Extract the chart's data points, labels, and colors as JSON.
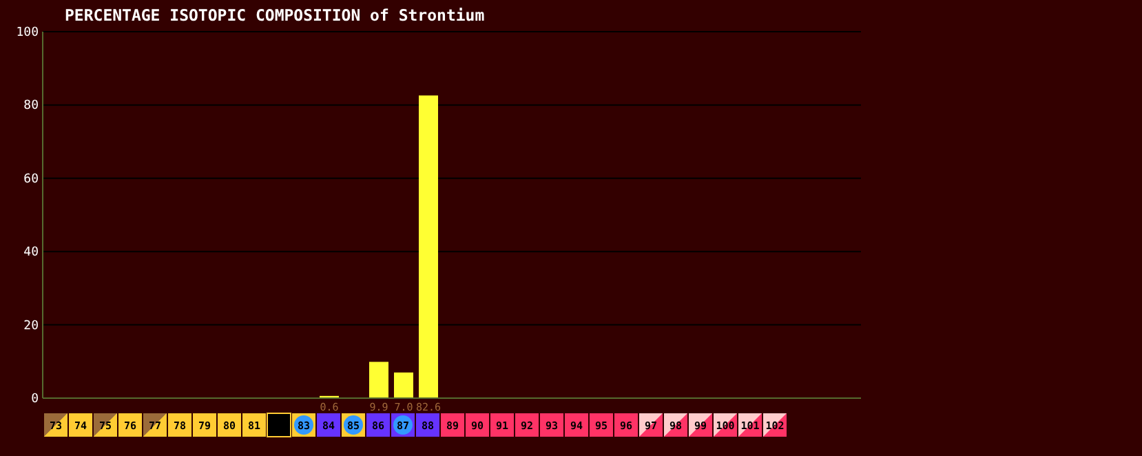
{
  "chart_data": {
    "type": "bar",
    "title": "PERCENTAGE ISOTOPIC COMPOSITION of Strontium",
    "categories": [
      "73",
      "74",
      "75",
      "76",
      "77",
      "78",
      "79",
      "80",
      "81",
      null,
      "83",
      "84",
      "85",
      "86",
      "87",
      "88",
      "89",
      "90",
      "91",
      "92",
      "93",
      "94",
      "95",
      "96",
      "97",
      "98",
      "99",
      "100",
      "101",
      "102"
    ],
    "values": [
      null,
      null,
      null,
      null,
      null,
      null,
      null,
      null,
      null,
      null,
      null,
      0.6,
      null,
      9.9,
      7.0,
      82.6,
      null,
      null,
      null,
      null,
      null,
      null,
      null,
      null,
      null,
      null,
      null,
      null,
      null,
      null
    ],
    "value_labels": [
      null,
      null,
      null,
      null,
      null,
      null,
      null,
      null,
      null,
      null,
      null,
      "0.6",
      null,
      "9.9",
      "7.0",
      "82.6",
      null,
      null,
      null,
      null,
      null,
      null,
      null,
      null,
      null,
      null,
      null,
      null,
      null,
      null
    ],
    "color": "#ffff33",
    "ylim": [
      0,
      100
    ],
    "yticks": [
      0,
      20,
      40,
      60,
      80,
      100
    ],
    "grid": "y"
  }
}
